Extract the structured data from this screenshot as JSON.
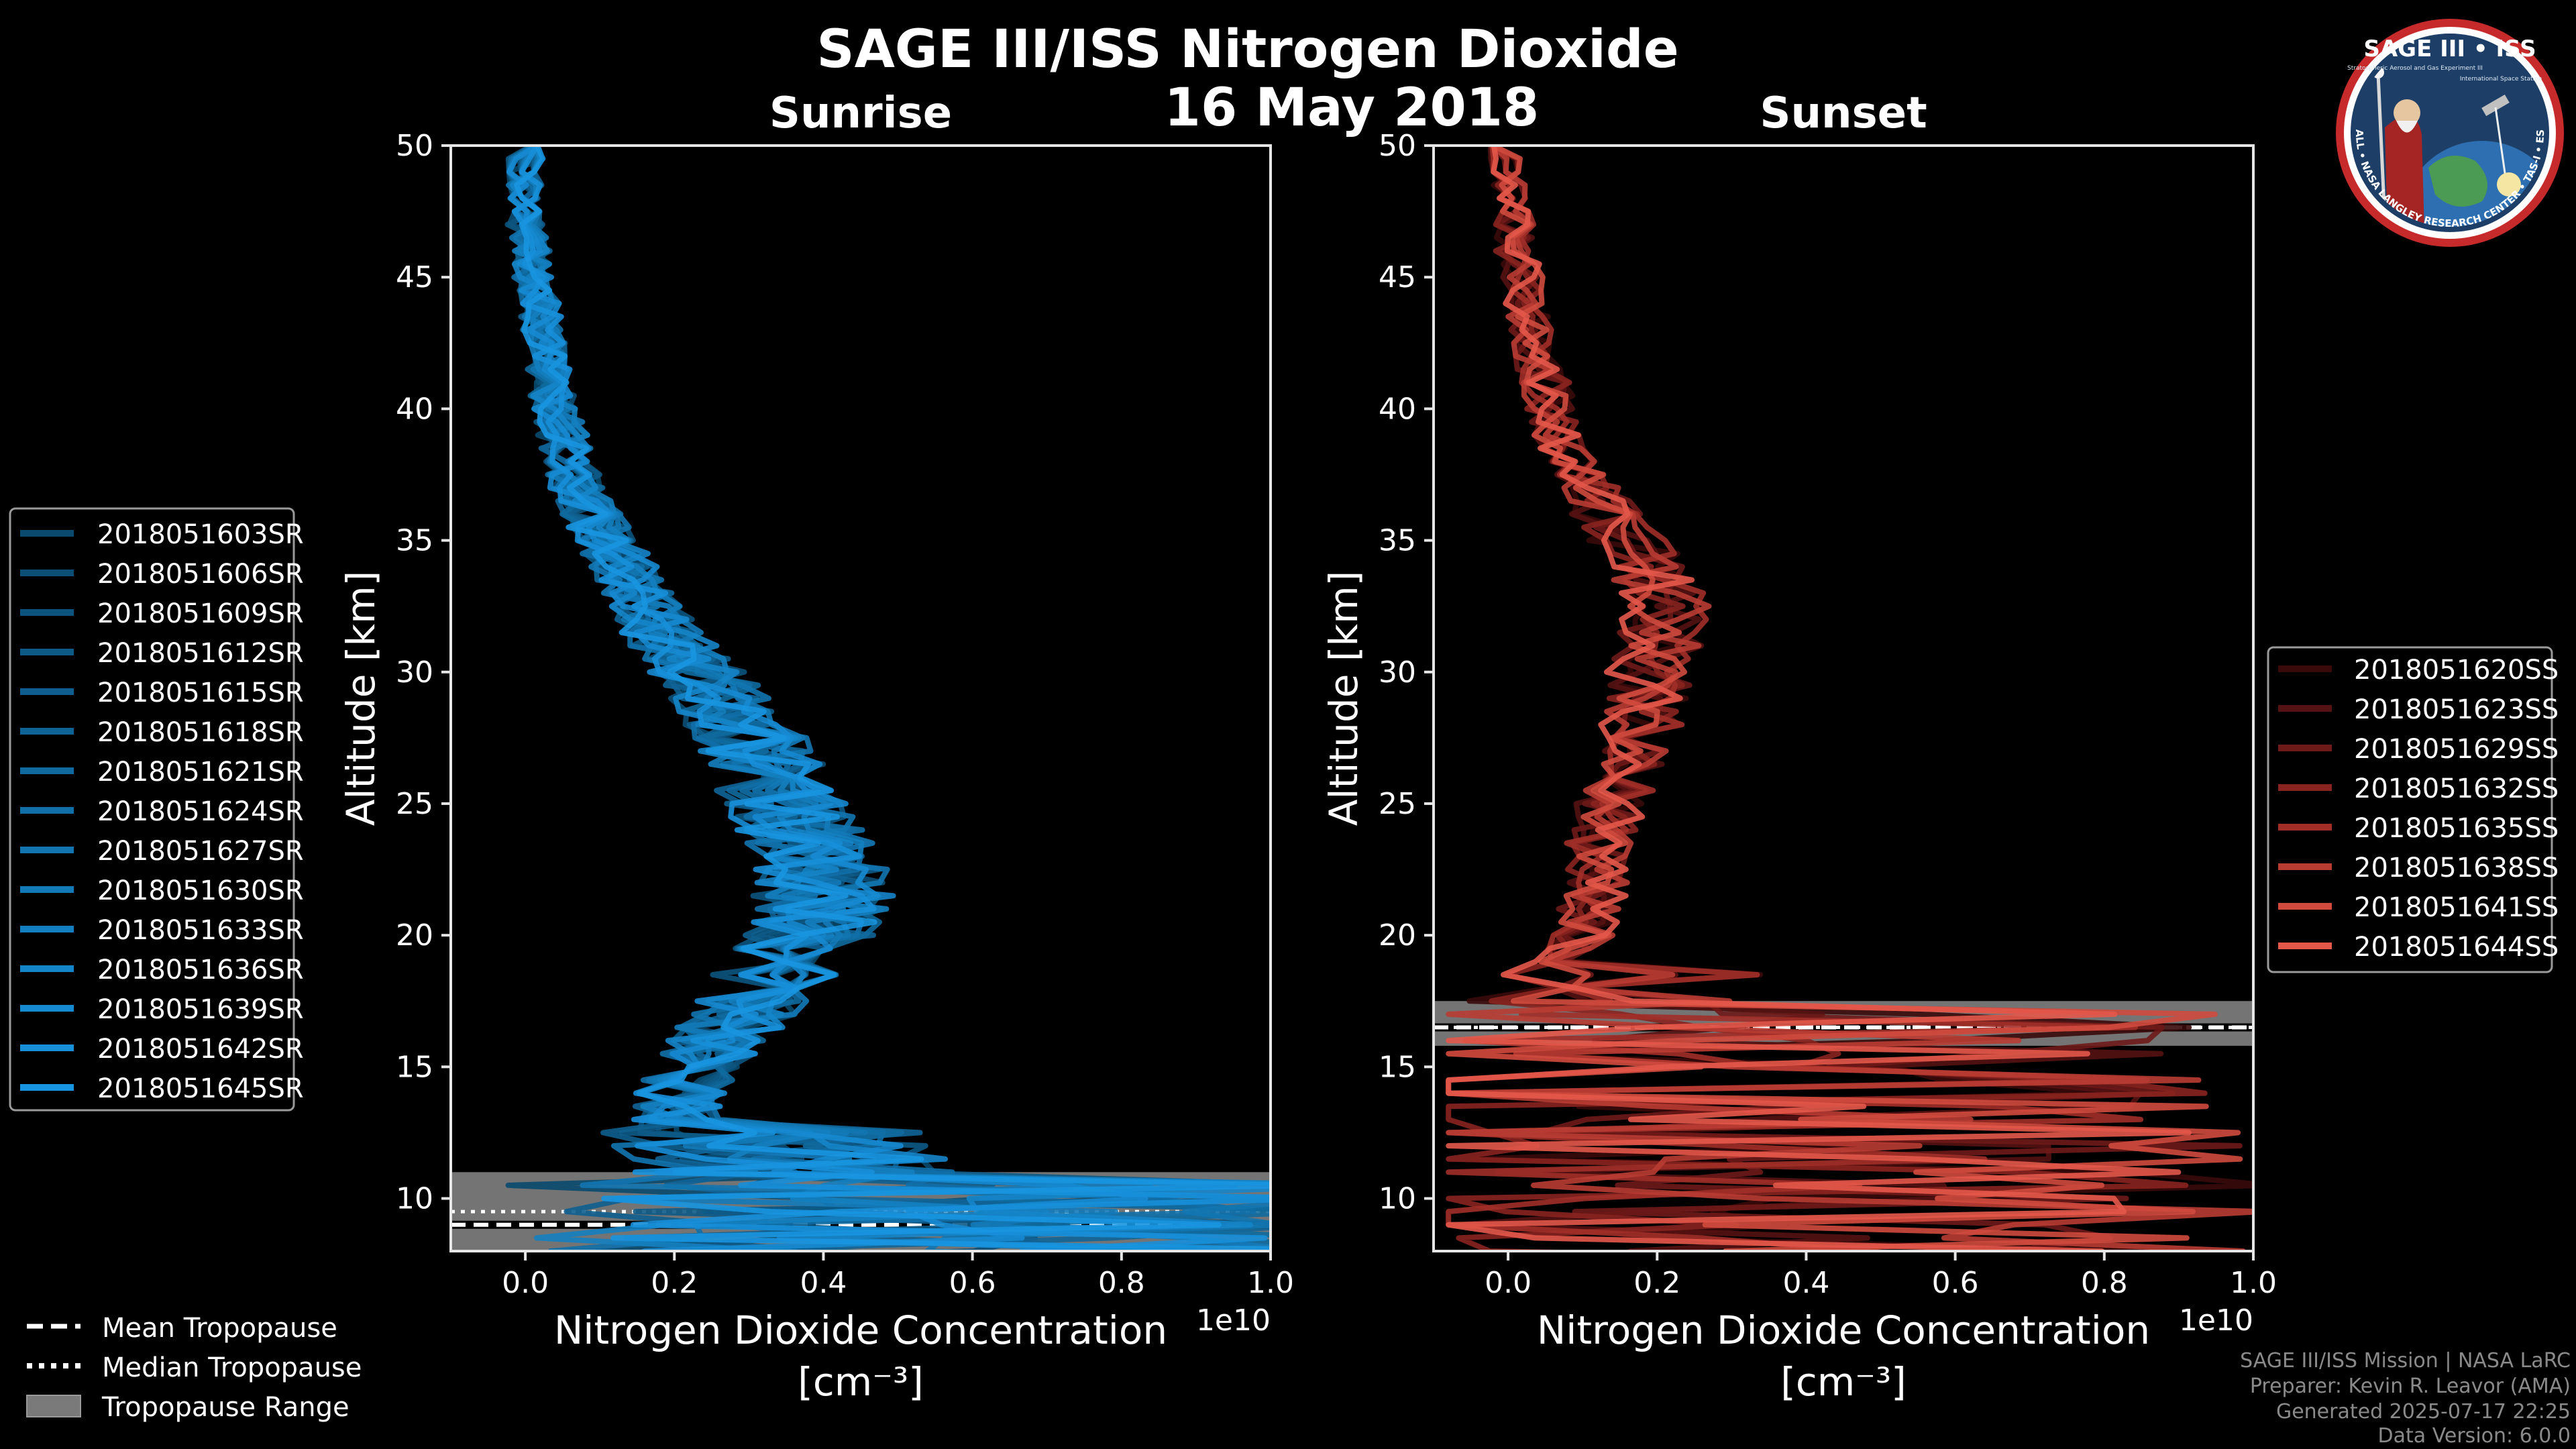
{
  "figure": {
    "title": "SAGE III/ISS Nitrogen Dioxide",
    "date": "16 May 2018",
    "footer": [
      "SAGE III/ISS Mission | NASA LaRC",
      "Preparer: Kevin R. Leavor (AMA)",
      "Generated 2025-07-17 22:25",
      "Data Version: 6.0.0"
    ],
    "logo": {
      "title": "SAGE III • ISS",
      "subtitle": "Stratospheric Aerosol and Gas Experiment III",
      "iss_text": "International Space Station",
      "ring_text": "BALL • NASA LANGLEY RESEARCH CENTER • TAS-I • ESA"
    },
    "tropopause_legend": [
      {
        "label": "Mean Tropopause",
        "style": "dashed"
      },
      {
        "label": "Median Tropopause",
        "style": "dotted"
      },
      {
        "label": "Tropopause Range",
        "style": "patch"
      }
    ]
  },
  "chart_data": [
    {
      "type": "line",
      "title": "Sunrise",
      "xlabel": "Nitrogen Dioxide Concentration",
      "xunit": "[cm⁻³]",
      "ylabel": "Altitude [km]",
      "x_scale_label": "1e10",
      "xlim": [
        -0.1,
        1.0
      ],
      "ylim": [
        8,
        50
      ],
      "xticks": [
        "0.0",
        "0.2",
        "0.4",
        "0.6",
        "0.8",
        "1.0"
      ],
      "yticks": [
        "10",
        "15",
        "20",
        "25",
        "30",
        "35",
        "40",
        "45",
        "50"
      ],
      "legend_position": "left",
      "tropopause": {
        "mean": 9.0,
        "median": 9.5,
        "range": [
          8.0,
          11.0
        ]
      },
      "mean_profile": {
        "altitude": [
          8,
          9,
          10,
          11,
          12,
          13,
          14,
          15,
          16,
          17,
          18,
          19,
          20,
          21,
          22,
          23,
          24,
          25,
          26,
          27,
          28,
          29,
          30,
          31,
          32,
          33,
          34,
          35,
          36,
          37,
          38,
          39,
          40,
          41,
          42,
          43,
          44,
          45,
          46,
          47,
          48,
          49,
          50
        ],
        "no2": [
          0.3,
          0.3,
          0.28,
          0.25,
          0.22,
          0.2,
          0.21,
          0.23,
          0.26,
          0.29,
          0.32,
          0.35,
          0.38,
          0.4,
          0.4,
          0.39,
          0.37,
          0.35,
          0.33,
          0.31,
          0.29,
          0.26,
          0.23,
          0.2,
          0.17,
          0.15,
          0.13,
          0.11,
          0.09,
          0.07,
          0.06,
          0.05,
          0.04,
          0.03,
          0.03,
          0.02,
          0.02,
          0.01,
          0.01,
          0.0,
          0.0,
          0.0,
          0.0
        ]
      },
      "series": [
        {
          "name": "2018051603SR",
          "color": "#0a4a6e"
        },
        {
          "name": "2018051606SR",
          "color": "#0b4f76"
        },
        {
          "name": "2018051609SR",
          "color": "#0c547e"
        },
        {
          "name": "2018051612SR",
          "color": "#0d5a87"
        },
        {
          "name": "2018051615SR",
          "color": "#0e5f8f"
        },
        {
          "name": "2018051618SR",
          "color": "#0f6497"
        },
        {
          "name": "2018051621SR",
          "color": "#106a9f"
        },
        {
          "name": "2018051624SR",
          "color": "#116fa8"
        },
        {
          "name": "2018051627SR",
          "color": "#1275b0"
        },
        {
          "name": "2018051630SR",
          "color": "#137ab8"
        },
        {
          "name": "2018051633SR",
          "color": "#147fc0"
        },
        {
          "name": "2018051636SR",
          "color": "#1585c9"
        },
        {
          "name": "2018051639SR",
          "color": "#168ad1"
        },
        {
          "name": "2018051642SR",
          "color": "#178fd9"
        },
        {
          "name": "2018051645SR",
          "color": "#1895e0"
        }
      ]
    },
    {
      "type": "line",
      "title": "Sunset",
      "xlabel": "Nitrogen Dioxide Concentration",
      "xunit": "[cm⁻³]",
      "ylabel": "Altitude [km]",
      "x_scale_label": "1e10",
      "xlim": [
        -0.1,
        1.0
      ],
      "ylim": [
        8,
        50
      ],
      "xticks": [
        "0.0",
        "0.2",
        "0.4",
        "0.6",
        "0.8",
        "1.0"
      ],
      "yticks": [
        "10",
        "15",
        "20",
        "25",
        "30",
        "35",
        "40",
        "45",
        "50"
      ],
      "legend_position": "right",
      "tropopause": {
        "mean": 16.5,
        "median": 16.5,
        "range": [
          15.8,
          17.5
        ]
      },
      "mean_profile": {
        "altitude": [
          8,
          9,
          10,
          11,
          12,
          13,
          14,
          15,
          16,
          17,
          18,
          19,
          20,
          21,
          22,
          23,
          24,
          25,
          26,
          27,
          28,
          29,
          30,
          31,
          32,
          33,
          34,
          35,
          36,
          37,
          38,
          39,
          40,
          41,
          42,
          43,
          44,
          45,
          46,
          47,
          48,
          49,
          50
        ],
        "no2": [
          0.15,
          0.15,
          0.14,
          0.12,
          0.1,
          0.08,
          0.07,
          0.06,
          0.05,
          0.05,
          0.06,
          0.08,
          0.1,
          0.11,
          0.12,
          0.12,
          0.13,
          0.14,
          0.15,
          0.17,
          0.18,
          0.19,
          0.19,
          0.2,
          0.21,
          0.21,
          0.19,
          0.16,
          0.13,
          0.11,
          0.09,
          0.07,
          0.06,
          0.05,
          0.04,
          0.03,
          0.02,
          0.02,
          0.01,
          0.01,
          0.0,
          0.0,
          0.0
        ]
      },
      "series": [
        {
          "name": "2018051620SS",
          "color": "#3a0a0a"
        },
        {
          "name": "2018051623SS",
          "color": "#551212"
        },
        {
          "name": "2018051629SS",
          "color": "#6e1a18"
        },
        {
          "name": "2018051632SS",
          "color": "#88231f"
        },
        {
          "name": "2018051635SS",
          "color": "#a12f28"
        },
        {
          "name": "2018051638SS",
          "color": "#b93c33"
        },
        {
          "name": "2018051641SS",
          "color": "#d04a3e"
        },
        {
          "name": "2018051644SS",
          "color": "#e4584a"
        }
      ]
    }
  ]
}
